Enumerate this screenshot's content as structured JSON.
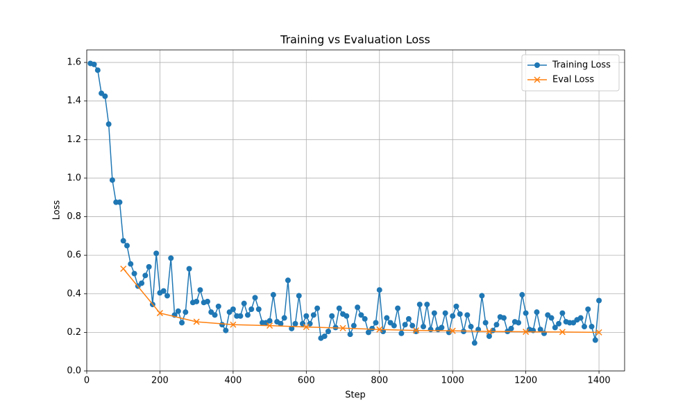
{
  "chart_data": {
    "type": "line",
    "title": "Training vs Evaluation Loss",
    "xlabel": "Step",
    "ylabel": "Loss",
    "xlim": [
      0,
      1470
    ],
    "ylim": [
      0,
      1.665
    ],
    "xticks": [
      0,
      200,
      400,
      600,
      800,
      1000,
      1200,
      1400
    ],
    "yticks": [
      {
        "value": 0,
        "label": "0.0"
      },
      0.2,
      0.4,
      0.6,
      0.8,
      {
        "value": 1,
        "label": "1.0"
      },
      1.2,
      1.4,
      1.6
    ],
    "grid": true,
    "legend": "upper right",
    "series": [
      {
        "name": "Training Loss",
        "color": "#1f77b4",
        "marker": "o",
        "x": [
          10,
          20,
          30,
          40,
          50,
          60,
          70,
          80,
          90,
          100,
          110,
          120,
          130,
          140,
          150,
          160,
          170,
          180,
          190,
          200,
          210,
          220,
          230,
          240,
          250,
          260,
          270,
          280,
          290,
          300,
          310,
          320,
          330,
          340,
          350,
          360,
          370,
          380,
          390,
          400,
          410,
          420,
          430,
          440,
          450,
          460,
          470,
          480,
          490,
          500,
          510,
          520,
          530,
          540,
          550,
          560,
          570,
          580,
          590,
          600,
          610,
          620,
          630,
          640,
          650,
          660,
          670,
          680,
          690,
          700,
          710,
          720,
          730,
          740,
          750,
          760,
          770,
          780,
          790,
          800,
          810,
          820,
          830,
          840,
          850,
          860,
          870,
          880,
          890,
          900,
          910,
          920,
          930,
          940,
          950,
          960,
          970,
          980,
          990,
          1000,
          1010,
          1020,
          1030,
          1040,
          1050,
          1060,
          1070,
          1080,
          1090,
          1100,
          1110,
          1120,
          1130,
          1140,
          1150,
          1160,
          1170,
          1180,
          1190,
          1200,
          1210,
          1220,
          1230,
          1240,
          1250,
          1260,
          1270,
          1280,
          1290,
          1300,
          1310,
          1320,
          1330,
          1340,
          1350,
          1360,
          1370,
          1380,
          1390,
          1400
        ],
        "values": [
          1.595,
          1.59,
          1.56,
          1.44,
          1.425,
          1.28,
          0.99,
          0.875,
          0.875,
          0.675,
          0.65,
          0.555,
          0.505,
          0.44,
          0.455,
          0.495,
          0.54,
          0.345,
          0.61,
          0.405,
          0.415,
          0.39,
          0.585,
          0.29,
          0.31,
          0.25,
          0.305,
          0.53,
          0.355,
          0.36,
          0.42,
          0.355,
          0.36,
          0.305,
          0.29,
          0.335,
          0.24,
          0.21,
          0.305,
          0.32,
          0.285,
          0.285,
          0.35,
          0.29,
          0.32,
          0.38,
          0.32,
          0.25,
          0.25,
          0.26,
          0.395,
          0.255,
          0.245,
          0.275,
          0.47,
          0.22,
          0.245,
          0.39,
          0.245,
          0.285,
          0.245,
          0.29,
          0.325,
          0.17,
          0.18,
          0.205,
          0.285,
          0.225,
          0.325,
          0.295,
          0.285,
          0.19,
          0.235,
          0.33,
          0.29,
          0.27,
          0.2,
          0.22,
          0.25,
          0.42,
          0.205,
          0.275,
          0.25,
          0.235,
          0.325,
          0.195,
          0.24,
          0.27,
          0.235,
          0.205,
          0.345,
          0.23,
          0.345,
          0.215,
          0.3,
          0.215,
          0.225,
          0.3,
          0.2,
          0.285,
          0.335,
          0.295,
          0.205,
          0.29,
          0.23,
          0.145,
          0.215,
          0.39,
          0.25,
          0.18,
          0.21,
          0.24,
          0.28,
          0.275,
          0.205,
          0.22,
          0.255,
          0.25,
          0.395,
          0.3,
          0.215,
          0.21,
          0.305,
          0.215,
          0.195,
          0.29,
          0.275,
          0.225,
          0.245,
          0.3,
          0.255,
          0.25,
          0.25,
          0.265,
          0.275,
          0.23,
          0.32,
          0.23,
          0.16,
          0.365
        ]
      },
      {
        "name": "Eval Loss",
        "color": "#ff7f0e",
        "marker": "x",
        "x": [
          100,
          200,
          300,
          400,
          500,
          600,
          700,
          800,
          900,
          1000,
          1100,
          1200,
          1300,
          1400
        ],
        "values": [
          0.53,
          0.3,
          0.255,
          0.24,
          0.235,
          0.228,
          0.222,
          0.215,
          0.21,
          0.208,
          0.205,
          0.203,
          0.202,
          0.2
        ]
      }
    ]
  }
}
